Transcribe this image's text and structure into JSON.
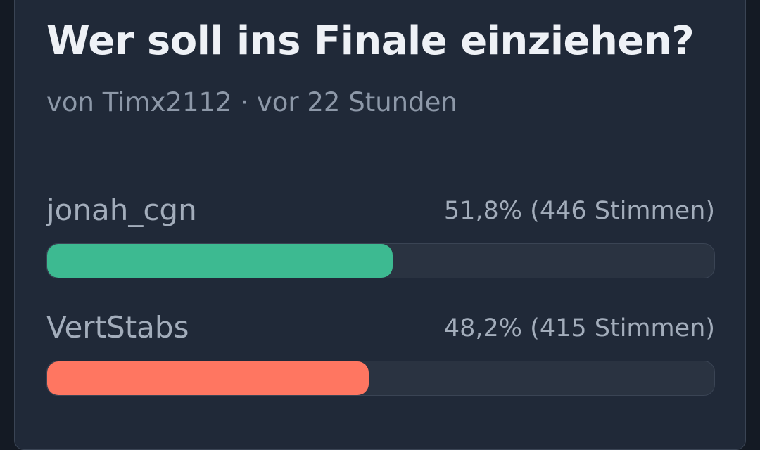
{
  "poll": {
    "title": "Wer soll ins Finale einziehen?",
    "meta": "von Timx2112 · vor 22 Stunden",
    "options": [
      {
        "name": "jonah_cgn",
        "result": "51,8% (446 Stimmen)",
        "fraction": 0.518,
        "color": "#3dba91"
      },
      {
        "name": "VertStabs",
        "result": "48,2% (415 Stimmen)",
        "fraction": 0.482,
        "color": "#ff7661"
      }
    ]
  }
}
